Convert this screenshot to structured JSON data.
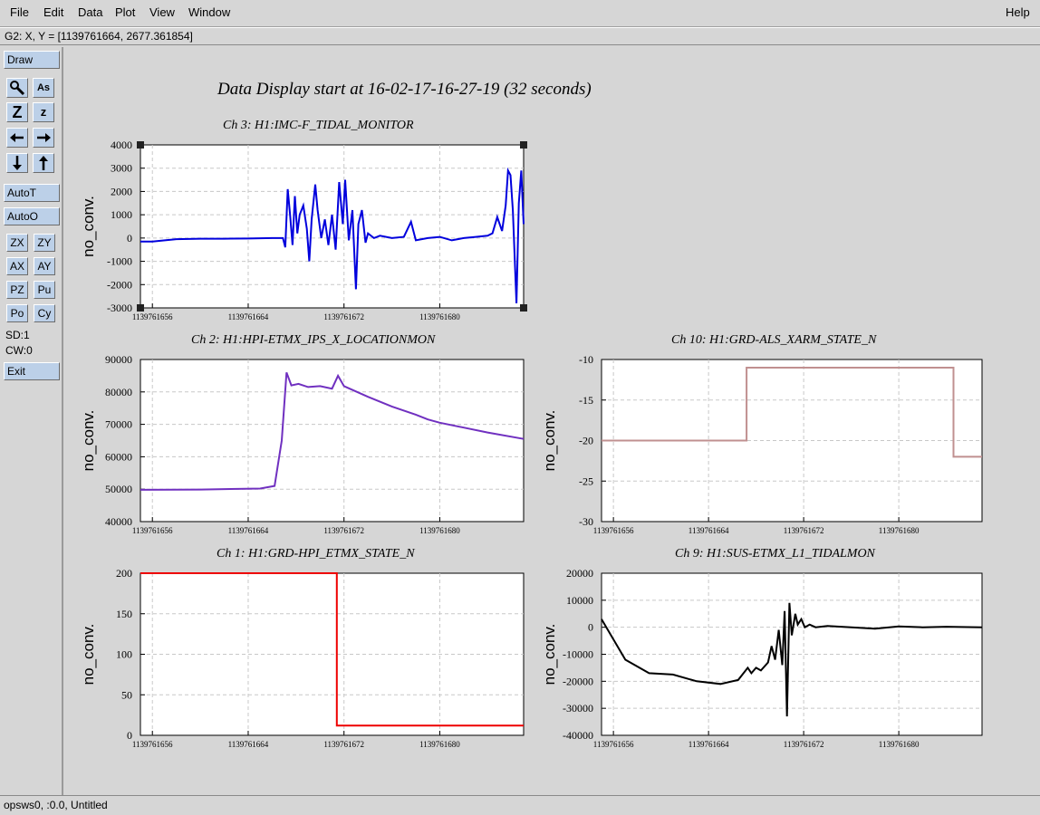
{
  "menu": {
    "file": "File",
    "edit": "Edit",
    "data": "Data",
    "plot": "Plot",
    "view": "View",
    "window": "Window",
    "help": "Help"
  },
  "coord_readout": "G2: X, Y = [1139761664, 2677.361854]",
  "toolbar": {
    "draw": "Draw",
    "autot": "AutoT",
    "autoo": "AutoO",
    "zx": "ZX",
    "zy": "ZY",
    "ax": "AX",
    "ay": "AY",
    "pz": "PZ",
    "pu": "Pu",
    "po": "Po",
    "cy": "Cy",
    "sd": "SD:1",
    "cw": "CW:0",
    "exit": "Exit",
    "icons": [
      "magnify-icon",
      "annotate-icon",
      "zoom-in-icon",
      "zoom-out-icon",
      "arrow-left-icon",
      "arrow-right-icon",
      "arrow-down-icon",
      "arrow-up-icon"
    ],
    "icon_glyphs": {
      "z_big": "Z",
      "z_small": "z",
      "as": "As"
    }
  },
  "main_title": "Data Display start at 16-02-17-16-27-19 (32 seconds)",
  "status": "opsws0, :0.0, Untitled",
  "chart_data": [
    {
      "type": "line",
      "title": "Ch 3: H1:IMC-F_TIDAL_MONITOR",
      "ylabel": "no_conv.",
      "color": "#0000dd",
      "ylim": [
        -3000,
        4000
      ],
      "yticks": [
        "4000",
        "3000",
        "2000",
        "1000",
        "0",
        "-1000",
        "-2000",
        "-3000"
      ],
      "xlim": [
        1139761655,
        1139761687
      ],
      "xticks": [
        "1139761656",
        "1139761664",
        "1139761672",
        "1139761680"
      ],
      "series": [
        {
          "x": [
            1139761655,
            1139761656,
            1139761658,
            1139761660,
            1139761662,
            1139761664,
            1139761666,
            1139761666.9,
            1139761667.1,
            1139761667.3,
            1139761667.5,
            1139761667.7,
            1139761667.9,
            1139761668.1,
            1139761668.3,
            1139761668.6,
            1139761668.9,
            1139761669.1,
            1139761669.3,
            1139761669.6,
            1139761669.8,
            1139761670.1,
            1139761670.4,
            1139761670.7,
            1139761671,
            1139761671.3,
            1139761671.6,
            1139761671.9,
            1139761672.1,
            1139761672.4,
            1139761672.7,
            1139761673,
            1139761673.2,
            1139761673.5,
            1139761673.8,
            1139761674,
            1139761674.5,
            1139761675,
            1139761676,
            1139761677,
            1139761677.6,
            1139761678,
            1139761679,
            1139761680,
            1139761681,
            1139761682,
            1139761683,
            1139761684,
            1139761684.4,
            1139761684.8,
            1139761685.2,
            1139761685.5,
            1139761685.7,
            1139761685.9,
            1139761686.1,
            1139761686.4,
            1139761686.6,
            1139761686.8,
            1139761687
          ],
          "y": [
            -150,
            -150,
            -50,
            -30,
            -30,
            -20,
            0,
            0,
            -400,
            2100,
            1000,
            -300,
            1800,
            200,
            1000,
            1400,
            400,
            -1000,
            800,
            2300,
            1200,
            0,
            800,
            -300,
            1000,
            -500,
            2400,
            600,
            2500,
            -100,
            1200,
            -2200,
            600,
            1200,
            -200,
            200,
            0,
            100,
            0,
            50,
            700,
            -100,
            0,
            50,
            -100,
            0,
            50,
            100,
            200,
            900,
            300,
            1400,
            2900,
            2700,
            1200,
            -2800,
            1500,
            2900,
            600
          ]
        }
      ]
    },
    {
      "type": "line",
      "title": "Ch 2: H1:HPI-ETMX_IPS_X_LOCATIONMON",
      "ylabel": "no_conv.",
      "color": "#7030c0",
      "ylim": [
        40000,
        90000
      ],
      "yticks": [
        "90000",
        "80000",
        "70000",
        "60000",
        "50000",
        "40000"
      ],
      "xlim": [
        1139761655,
        1139761687
      ],
      "xticks": [
        "1139761656",
        "1139761664",
        "1139761672",
        "1139761680"
      ],
      "series": [
        {
          "x": [
            1139761655,
            1139761660,
            1139761665,
            1139761666.2,
            1139761666.8,
            1139761667.2,
            1139761667.6,
            1139761668.2,
            1139761669,
            1139761670,
            1139761671,
            1139761671.5,
            1139761672,
            1139761674,
            1139761676,
            1139761678,
            1139761679,
            1139761680,
            1139761682,
            1139761684,
            1139761687
          ],
          "y": [
            49800,
            49900,
            50200,
            51000,
            65000,
            86000,
            82000,
            82500,
            81500,
            81800,
            81000,
            85000,
            81800,
            78500,
            75500,
            73000,
            71500,
            70500,
            69000,
            67500,
            65500
          ]
        }
      ]
    },
    {
      "type": "line",
      "title": "Ch 10: H1:GRD-ALS_XARM_STATE_N",
      "ylabel": "no_conv.",
      "color": "#c09090",
      "ylim": [
        -30,
        -10
      ],
      "yticks": [
        "-10",
        "-15",
        "-20",
        "-25",
        "-30"
      ],
      "xlim": [
        1139761655,
        1139761687
      ],
      "xticks": [
        "1139761656",
        "1139761664",
        "1139761672",
        "1139761680"
      ],
      "series": [
        {
          "x": [
            1139761655,
            1139761667.2,
            1139761667.2,
            1139761684.6,
            1139761684.6,
            1139761687
          ],
          "y": [
            -20,
            -20,
            -11,
            -11,
            -22,
            -22
          ]
        }
      ]
    },
    {
      "type": "line",
      "title": "Ch 1: H1:GRD-HPI_ETMX_STATE_N",
      "ylabel": "no_conv.",
      "color": "#ee0000",
      "ylim": [
        0,
        200
      ],
      "yticks": [
        "200",
        "150",
        "100",
        "50",
        "0"
      ],
      "xlim": [
        1139761655,
        1139761687
      ],
      "xticks": [
        "1139761656",
        "1139761664",
        "1139761672",
        "1139761680"
      ],
      "series": [
        {
          "x": [
            1139761655,
            1139761671.4,
            1139761671.4,
            1139761687
          ],
          "y": [
            200,
            200,
            12,
            12
          ]
        }
      ]
    },
    {
      "type": "line",
      "title": "Ch 9: H1:SUS-ETMX_L1_TIDALMON",
      "ylabel": "no_conv.",
      "color": "#000000",
      "ylim": [
        -40000,
        20000
      ],
      "yticks": [
        "20000",
        "10000",
        "0",
        "-10000",
        "-20000",
        "-30000",
        "-40000"
      ],
      "xlim": [
        1139761655,
        1139761687
      ],
      "xticks": [
        "1139761656",
        "1139761664",
        "1139761672",
        "1139761680"
      ],
      "series": [
        {
          "x": [
            1139761655,
            1139761657,
            1139761659,
            1139761661,
            1139761663,
            1139761665,
            1139761666.5,
            1139761667.3,
            1139761667.6,
            1139761668,
            1139761668.4,
            1139761669,
            1139761669.3,
            1139761669.6,
            1139761669.9,
            1139761670.2,
            1139761670.4,
            1139761670.6,
            1139761670.8,
            1139761671,
            1139761671.3,
            1139761671.5,
            1139761671.8,
            1139761672.1,
            1139761672.5,
            1139761673,
            1139761674,
            1139761676,
            1139761678,
            1139761680,
            1139761682,
            1139761684,
            1139761687
          ],
          "y": [
            3000,
            -12000,
            -17000,
            -17500,
            -20000,
            -21000,
            -19500,
            -15000,
            -17000,
            -15000,
            -16000,
            -13000,
            -7000,
            -12000,
            -1000,
            -14000,
            6000,
            -33000,
            9000,
            -3000,
            5000,
            1000,
            3000,
            0,
            1000,
            0,
            500,
            0,
            -500,
            300,
            0,
            200,
            0
          ]
        }
      ]
    }
  ]
}
